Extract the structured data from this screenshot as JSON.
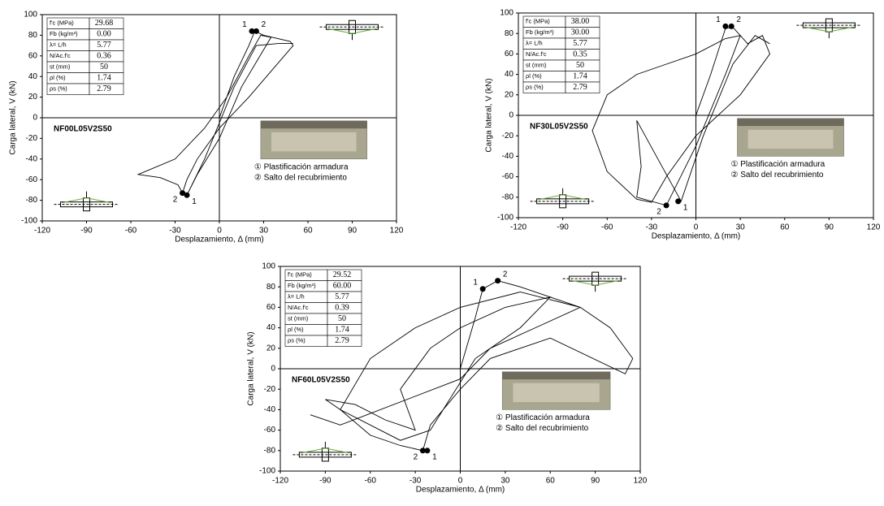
{
  "chart_data": [
    {
      "type": "line",
      "title": "NF00L05V2S50",
      "xlabel": "Desplazamiento, Δ (mm)",
      "ylabel": "Carga lateral, V (kN)",
      "xlim": [
        -120,
        120
      ],
      "ylim": [
        -100,
        100
      ],
      "xticks": [
        -120,
        -90,
        -60,
        -30,
        0,
        30,
        60,
        90,
        120
      ],
      "yticks": [
        -100,
        -80,
        -60,
        -40,
        -20,
        0,
        20,
        40,
        60,
        80,
        100
      ],
      "series": [
        {
          "color": "#000000",
          "x": [
            0,
            10,
            20,
            24,
            30,
            48,
            50,
            20,
            0,
            -15,
            -22,
            -25,
            -28,
            -40,
            -55,
            -30,
            -10,
            5,
            20,
            28,
            35,
            15,
            0,
            -15,
            -22,
            -10,
            10,
            25,
            40,
            50
          ],
          "y": [
            0,
            40,
            70,
            84,
            80,
            74,
            70,
            20,
            -10,
            -40,
            -60,
            -73,
            -65,
            -58,
            -55,
            -40,
            -10,
            20,
            60,
            80,
            78,
            30,
            -20,
            -55,
            -75,
            -40,
            30,
            70,
            72,
            72
          ]
        }
      ],
      "key_points": {
        "x": [
          22,
          25,
          -25,
          -22
        ],
        "y": [
          84,
          84,
          -73,
          -75
        ],
        "labels": [
          "1",
          "2",
          "2",
          "1"
        ]
      },
      "table": [
        [
          "f'c (MPa)",
          "29.68"
        ],
        [
          "Fb (kg/m³)",
          "0.00"
        ],
        [
          "λ= L/h",
          "5.77"
        ],
        [
          "N/Ac.f'c",
          "0.36"
        ],
        [
          "st (mm)",
          "50"
        ],
        [
          "ρl (%)",
          "1.74"
        ],
        [
          "ρs (%)",
          "2.79"
        ]
      ],
      "annotations": [
        "① Plastificación armadura",
        "② Salto del recubrimiento"
      ]
    },
    {
      "type": "line",
      "title": "NF30L05V2S50",
      "xlabel": "Desplazamiento, Δ (mm)",
      "ylabel": "Carga lateral, V (kN)",
      "xlim": [
        -120,
        120
      ],
      "ylim": [
        -100,
        100
      ],
      "xticks": [
        -120,
        -90,
        -60,
        -30,
        0,
        30,
        60,
        90,
        120
      ],
      "yticks": [
        -100,
        -80,
        -60,
        -40,
        -20,
        0,
        20,
        40,
        60,
        80,
        100
      ],
      "series": [
        {
          "color": "#000000",
          "x": [
            0,
            10,
            20,
            25,
            35,
            45,
            50,
            30,
            0,
            -20,
            -30,
            -40,
            -60,
            -70,
            -60,
            -40,
            -20,
            0,
            20,
            30,
            20,
            0,
            -20,
            -40,
            -37,
            -40,
            -10,
            5,
            25,
            40,
            50
          ],
          "y": [
            0,
            40,
            85,
            86,
            70,
            78,
            60,
            20,
            -20,
            -60,
            -85,
            -82,
            -55,
            -15,
            20,
            40,
            50,
            60,
            75,
            78,
            40,
            -30,
            -88,
            -80,
            -50,
            -5,
            -84,
            -20,
            50,
            78,
            70
          ]
        }
      ],
      "key_points": {
        "x": [
          20,
          24,
          -20,
          -12
        ],
        "y": [
          87,
          87,
          -88,
          -84
        ],
        "labels": [
          "1",
          "2",
          "2",
          "1"
        ]
      },
      "table": [
        [
          "f'c (MPa)",
          "38.00"
        ],
        [
          "Fb (kg/m³)",
          "30.00"
        ],
        [
          "λ= L/h",
          "5.77"
        ],
        [
          "N/Ac.f'c",
          "0.35"
        ],
        [
          "st (mm)",
          "50"
        ],
        [
          "ρl (%)",
          "1.74"
        ],
        [
          "ρs (%)",
          "2.79"
        ]
      ],
      "annotations": [
        "① Plastificación armadura",
        "② Salto del recubrimiento"
      ]
    },
    {
      "type": "line",
      "title": "NF60L05V2S50",
      "xlabel": "Desplazamiento, Δ (mm)",
      "ylabel": "Carga lateral, V (kN)",
      "xlim": [
        -120,
        120
      ],
      "ylim": [
        -100,
        100
      ],
      "xticks": [
        -120,
        -90,
        -60,
        -30,
        0,
        30,
        60,
        90,
        120
      ],
      "yticks": [
        -100,
        -80,
        -60,
        -40,
        -20,
        0,
        20,
        40,
        60,
        80,
        100
      ],
      "series": [
        {
          "color": "#000000",
          "x": [
            0,
            10,
            15,
            25,
            40,
            60,
            80,
            100,
            115,
            110,
            60,
            20,
            0,
            -20,
            -25,
            -40,
            -60,
            -80,
            -90,
            -70,
            -50,
            -30,
            -40,
            -20,
            0,
            30,
            60,
            40,
            10,
            -20,
            -40,
            -80,
            -60,
            -30,
            0,
            40,
            80,
            50,
            20,
            0,
            -80,
            -100
          ],
          "y": [
            0,
            50,
            78,
            86,
            80,
            70,
            60,
            40,
            10,
            -5,
            30,
            10,
            -20,
            -55,
            -80,
            -75,
            -65,
            -40,
            -30,
            -35,
            -50,
            -60,
            -20,
            20,
            40,
            60,
            70,
            40,
            10,
            -60,
            -70,
            -40,
            10,
            40,
            60,
            75,
            60,
            40,
            20,
            -10,
            -55,
            -45
          ]
        }
      ],
      "key_points": {
        "x": [
          15,
          25,
          -25,
          -22
        ],
        "y": [
          78,
          86,
          -80,
          -80
        ],
        "labels": [
          "1",
          "2",
          "2",
          "1"
        ]
      },
      "table": [
        [
          "f'c (MPa)",
          "29.52"
        ],
        [
          "Fb (kg/m³)",
          "60.00"
        ],
        [
          "λ= L/h",
          "5.77"
        ],
        [
          "N/Ac.f'c",
          "0.39"
        ],
        [
          "st (mm)",
          "50"
        ],
        [
          "ρl (%)",
          "1.74"
        ],
        [
          "ρs (%)",
          "2.79"
        ]
      ],
      "annotations": [
        "① Plastificación armadura",
        "② Salto del recubrimiento"
      ]
    }
  ]
}
